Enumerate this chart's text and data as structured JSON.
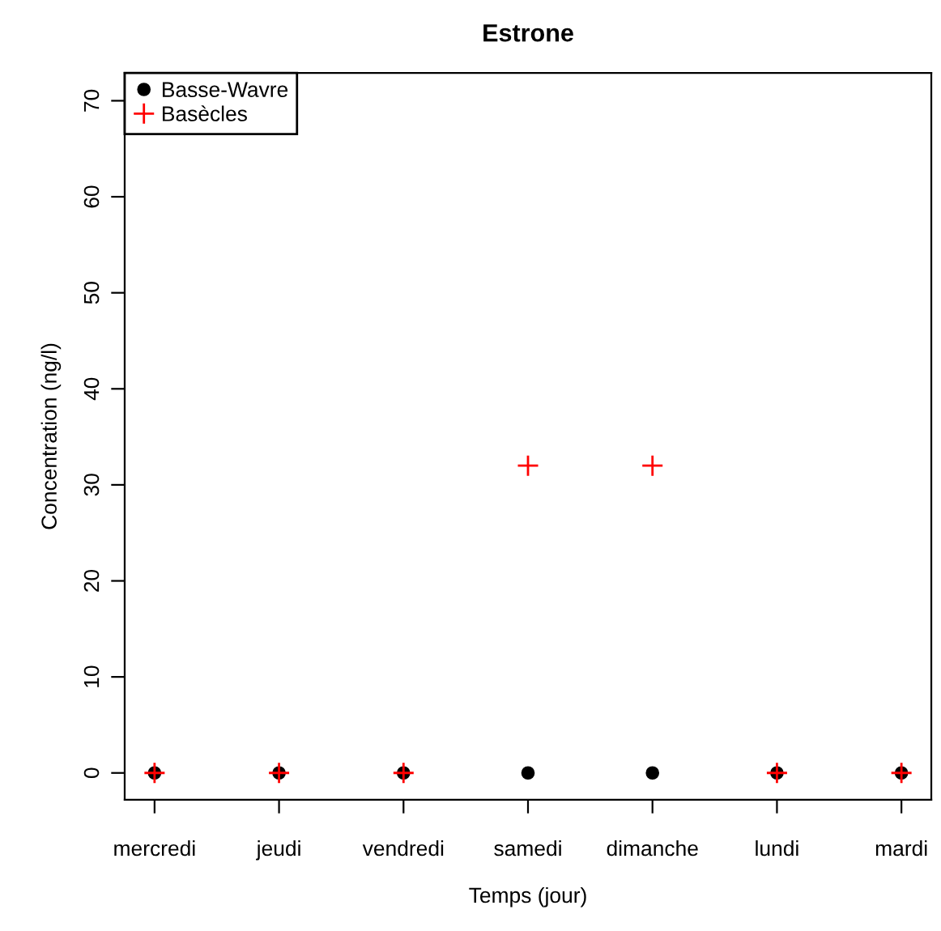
{
  "chart_data": {
    "type": "scatter",
    "title": "Estrone",
    "xlabel": "Temps (jour)",
    "ylabel": "Concentration (ng/l)",
    "categories": [
      "mercredi",
      "jeudi",
      "vendredi",
      "samedi",
      "dimanche",
      "lundi",
      "mardi"
    ],
    "series": [
      {
        "name": "Basse-Wavre",
        "color": "#000000",
        "marker": "circle",
        "values": [
          0,
          0,
          0,
          0,
          0,
          0,
          0
        ]
      },
      {
        "name": "Basècles",
        "color": "#ff0000",
        "marker": "cross",
        "values": [
          0,
          0,
          0,
          32,
          32,
          0,
          0
        ]
      }
    ],
    "ylim": [
      -2.8,
      72.9
    ],
    "yticks": [
      0,
      10,
      20,
      30,
      40,
      50,
      60,
      70
    ],
    "grid": false,
    "legend": "top left"
  }
}
